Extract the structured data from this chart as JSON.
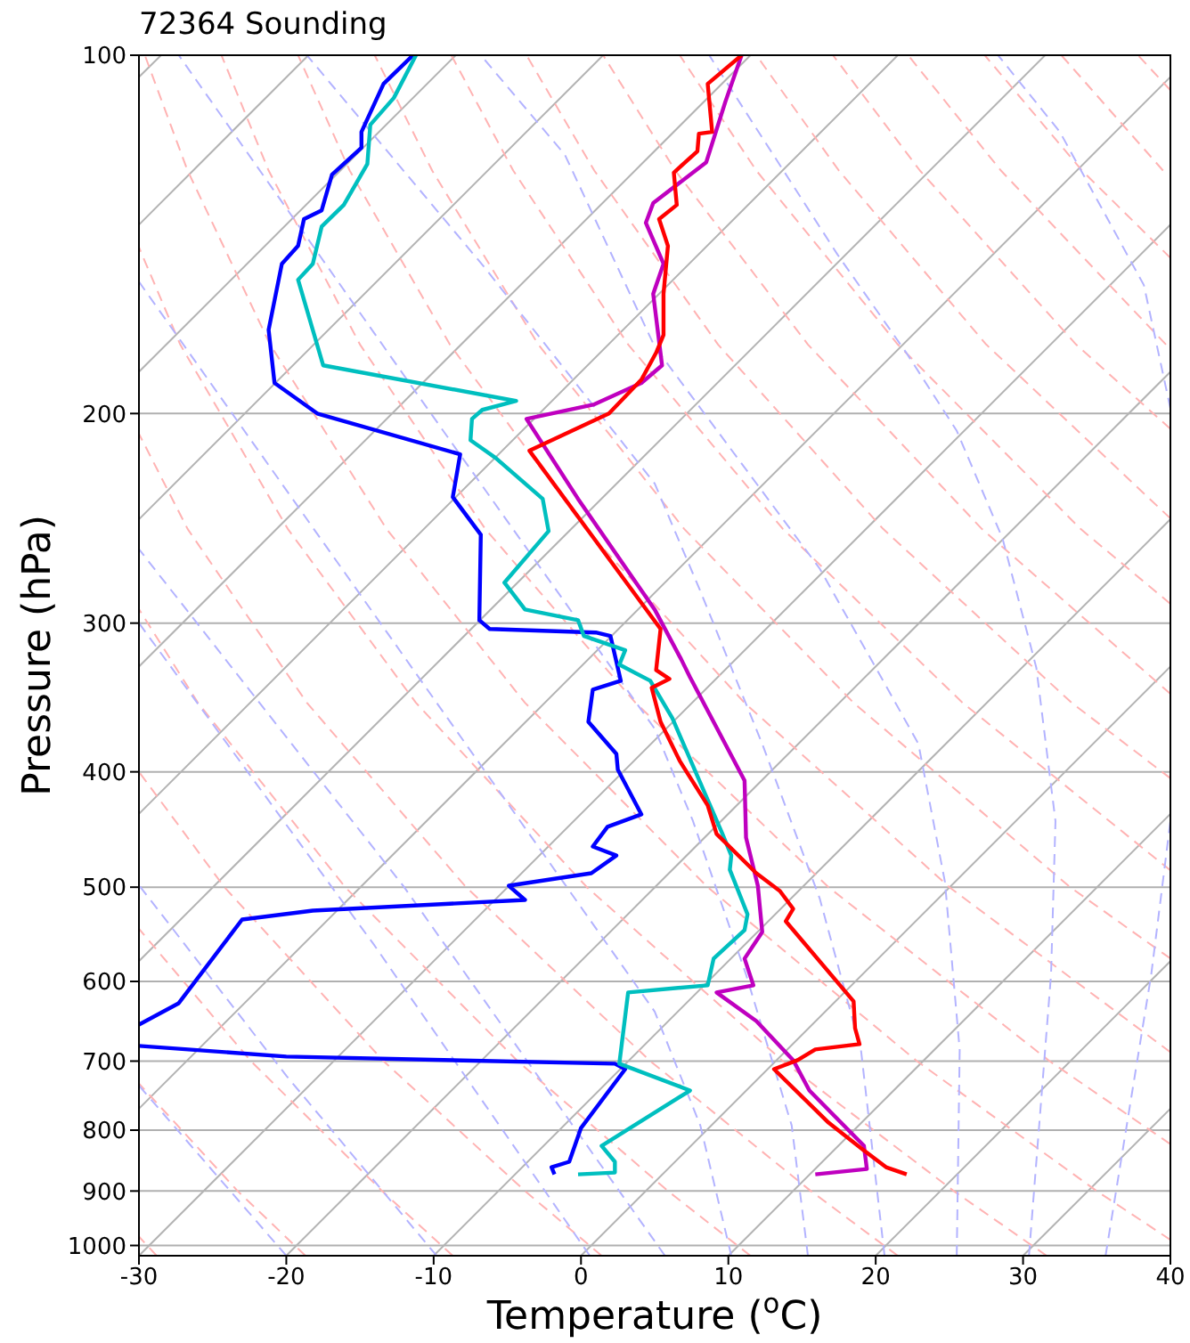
{
  "chart_data": {
    "type": "line",
    "title": "72364 Sounding",
    "xlabel": "Temperature ($^{o}$C)",
    "ylabel": "Pressure (hPa)",
    "log": "y",
    "grid": "y",
    "xlim": [
      -30,
      40
    ],
    "xticks": [
      -30,
      -20,
      -10,
      0,
      10,
      20,
      30,
      40
    ],
    "ylim": [
      1020,
      100
    ],
    "yticks": [
      100,
      200,
      300,
      400,
      500,
      600,
      700,
      800,
      900,
      1000
    ],
    "series": [
      {
        "color": "#b3b3b3",
        "line_style": "solid",
        "x": [
          -30,
          -28.5
        ],
        "values": [
          104.3,
          100
        ]
      },
      {
        "color": "#b3b3b3",
        "line_style": "solid",
        "x": [
          -30,
          -18.5
        ],
        "values": [
          138.8,
          100
        ]
      },
      {
        "color": "#b3b3b3",
        "line_style": "solid",
        "x": [
          -30,
          -8.5
        ],
        "values": [
          184.5,
          100
        ]
      },
      {
        "color": "#b3b3b3",
        "line_style": "solid",
        "x": [
          -30,
          1.5
        ],
        "values": [
          245.4,
          100
        ]
      },
      {
        "color": "#b3b3b3",
        "line_style": "solid",
        "x": [
          -30,
          11.5
        ],
        "values": [
          326.3,
          100
        ]
      },
      {
        "color": "#b3b3b3",
        "line_style": "solid",
        "x": [
          -30,
          21.5
        ],
        "values": [
          433.9,
          100
        ]
      },
      {
        "color": "#b3b3b3",
        "line_style": "solid",
        "x": [
          -30,
          31.5
        ],
        "values": [
          576.9,
          100
        ]
      },
      {
        "color": "#b3b3b3",
        "line_style": "solid",
        "x": [
          -30,
          40
        ],
        "values": [
          767.5,
          104.3
        ]
      },
      {
        "color": "#b3b3b3",
        "line_style": "solid",
        "x": [
          -30,
          40
        ],
        "values": [
          1020,
          138.8
        ]
      },
      {
        "color": "#b3b3b3",
        "line_style": "solid",
        "x": [
          -20,
          40
        ],
        "values": [
          1020,
          184.5
        ]
      },
      {
        "color": "#b3b3b3",
        "line_style": "solid",
        "x": [
          -10,
          40
        ],
        "values": [
          1020,
          245.4
        ]
      },
      {
        "color": "#b3b3b3",
        "line_style": "solid",
        "x": [
          0,
          40
        ],
        "values": [
          1020,
          326.3
        ]
      },
      {
        "color": "#b3b3b3",
        "line_style": "solid",
        "x": [
          10,
          40
        ],
        "values": [
          1020,
          433.9
        ]
      },
      {
        "color": "#b3b3b3",
        "line_style": "solid",
        "x": [
          20,
          40
        ],
        "values": [
          1020,
          576.9
        ]
      },
      {
        "color": "#b3b3b3",
        "line_style": "solid",
        "x": [
          30,
          40
        ],
        "values": [
          1020,
          767.5
        ]
      },
      {
        "color": "#ffb3b3",
        "line_style": "dashed",
        "x": [
          -28.8,
          -30
        ],
        "values": [
          1020,
          983
        ]
      },
      {
        "color": "#ffb3b3",
        "line_style": "dashed",
        "x": [
          -18.7,
          -23.3,
          -30
        ],
        "values": [
          1020,
          900,
          731
        ]
      },
      {
        "color": "#ffb3b3",
        "line_style": "dashed",
        "x": [
          -8.7,
          -13.5,
          -22.4,
          -30
        ],
        "values": [
          1020,
          900,
          700,
          542
        ]
      },
      {
        "color": "#ffb3b3",
        "line_style": "dashed",
        "x": [
          1.4,
          -3.8,
          -13.4,
          -24.2,
          -30
        ],
        "values": [
          1020,
          900,
          700,
          500,
          400
        ]
      },
      {
        "color": "#ffb3b3",
        "line_style": "dashed",
        "x": [
          11.5,
          5.9,
          -4.3,
          -16.0,
          -26.0,
          -30
        ],
        "values": [
          1020,
          900,
          700,
          500,
          350,
          292
        ]
      },
      {
        "color": "#ffb3b3",
        "line_style": "dashed",
        "x": [
          21.5,
          15.6,
          4.7,
          -7.8,
          -18.6,
          -26.7,
          -30
        ],
        "values": [
          1020,
          900,
          700,
          500,
          350,
          250,
          208
        ]
      },
      {
        "color": "#ffb3b3",
        "line_style": "dashed",
        "x": [
          31.6,
          25.3,
          13.7,
          0.4,
          -11.2,
          -19.9,
          -27.2,
          -30
        ],
        "values": [
          1020,
          900,
          700,
          500,
          350,
          250,
          175,
          145
        ]
      },
      {
        "color": "#ffb3b3",
        "line_style": "dashed",
        "x": [
          40,
          35.0,
          22.8,
          8.6,
          -3.8,
          -13.2,
          -21.1,
          -26.7,
          -29.6
        ],
        "values": [
          989,
          900,
          700,
          500,
          350,
          250,
          175,
          125,
          100
        ]
      },
      {
        "color": "#ffb3b3",
        "line_style": "dashed",
        "x": [
          40,
          31.8,
          16.8,
          3.7,
          -6.5,
          -15.0,
          -21.2,
          -24.4
        ],
        "values": [
          822,
          700,
          500,
          350,
          250,
          175,
          125,
          100
        ]
      },
      {
        "color": "#ffb3b3",
        "line_style": "dashed",
        "x": [
          40,
          25.0,
          11.1,
          0.3,
          -8.9,
          -15.7,
          -19.2
        ],
        "values": [
          688,
          500,
          350,
          250,
          175,
          125,
          100
        ]
      },
      {
        "color": "#ffb3b3",
        "line_style": "dashed",
        "x": [
          40,
          33.2,
          18.5,
          7.0,
          -2.9,
          -10.1,
          -14.0
        ],
        "values": [
          574,
          500,
          350,
          250,
          175,
          125,
          100
        ]
      },
      {
        "color": "#ffb3b3",
        "line_style": "dashed",
        "x": [
          40,
          25.9,
          13.7,
          3.2,
          -4.6,
          -8.8
        ],
        "values": [
          484,
          350,
          250,
          175,
          125,
          100
        ]
      },
      {
        "color": "#ffb3b3",
        "line_style": "dashed",
        "x": [
          40,
          33.3,
          20.5,
          9.3,
          0.9,
          -3.7
        ],
        "values": [
          405,
          350,
          250,
          175,
          125,
          100
        ]
      },
      {
        "color": "#ffb3b3",
        "line_style": "dashed",
        "x": [
          40,
          27.2,
          15.4,
          6.4,
          1.5
        ],
        "values": [
          344,
          250,
          175,
          125,
          100
        ]
      },
      {
        "color": "#ffb3b3",
        "line_style": "dashed",
        "x": [
          40,
          33.9,
          21.5,
          11.9,
          6.7
        ],
        "values": [
          289,
          250,
          175,
          125,
          100
        ]
      },
      {
        "color": "#ffb3b3",
        "line_style": "dashed",
        "x": [
          40,
          27.5,
          17.5,
          11.9
        ],
        "values": [
          245,
          175,
          125,
          100
        ]
      },
      {
        "color": "#ffb3b3",
        "line_style": "dashed",
        "x": [
          40,
          33.6,
          23.0,
          17.1
        ],
        "values": [
          206,
          175,
          125,
          100
        ]
      },
      {
        "color": "#ffb3b3",
        "line_style": "dashed",
        "x": [
          39.7,
          28.5,
          22.2
        ],
        "values": [
          175,
          125,
          100
        ]
      },
      {
        "color": "#ffb3b3",
        "line_style": "dashed",
        "x": [
          40,
          34.0,
          27.4
        ],
        "values": [
          148,
          125,
          100
        ]
      },
      {
        "color": "#ffb3b3",
        "line_style": "dashed",
        "x": [
          39.5,
          32.6
        ],
        "values": [
          125,
          100
        ]
      },
      {
        "color": "#ffb3b3",
        "line_style": "dashed",
        "x": [
          40,
          37.8
        ],
        "values": [
          107,
          100
        ]
      },
      {
        "color": "#b3b3ff",
        "line_style": "dashed",
        "x": [
          35.6,
          38.7,
          40
        ],
        "values": [
          1020,
          592,
          440
        ]
      },
      {
        "color": "#b3b3ff",
        "line_style": "dashed",
        "x": [
          40,
          38.2,
          32.5,
          28.3
        ],
        "values": [
          198,
          156,
          116,
          100
        ]
      },
      {
        "color": "#b3b3ff",
        "line_style": "dashed",
        "x": [
          30.4,
          31.9,
          32.2,
          30.9,
          28.6,
          25.5,
          22.1,
          17.4,
          8.7
        ],
        "values": [
          1020,
          592,
          440,
          327,
          254.5,
          206.8,
          178,
          147,
          100
        ]
      },
      {
        "color": "#b3b3ff",
        "line_style": "dashed",
        "x": [
          25.5,
          25.7,
          24.7,
          22.9,
          20.6,
          16.2,
          5.0,
          -1.1,
          -6.8
        ],
        "values": [
          1020,
          685,
          495,
          379,
          337,
          270,
          175.7,
          121.2,
          100
        ]
      },
      {
        "color": "#b3b3ff",
        "line_style": "dashed",
        "x": [
          20.6,
          19.0,
          16.2,
          12.3,
          8.1,
          5.0,
          -6.5,
          -18.6
        ],
        "values": [
          1020,
          685,
          511,
          379,
          282,
          229,
          151,
          100
        ]
      },
      {
        "color": "#b3b3ff",
        "line_style": "dashed",
        "x": [
          15.4,
          14.3,
          11.2,
          7.6,
          5.0,
          -11.2,
          -27.3
        ],
        "values": [
          1020,
          793,
          592,
          440,
          368,
          192,
          100
        ]
      },
      {
        "color": "#b3b3ff",
        "line_style": "dashed",
        "x": [
          10.2,
          8.1,
          5.0,
          -12.8,
          -30
        ],
        "values": [
          1020,
          793,
          636,
          310,
          155
        ]
      },
      {
        "color": "#b3b3ff",
        "line_style": "dashed",
        "x": [
          5.7,
          -12,
          -30
        ],
        "values": [
          1020,
          500,
          260
        ]
      },
      {
        "color": "#b3b3ff",
        "line_style": "dashed",
        "x": [
          0.6,
          -14,
          -30
        ],
        "values": [
          1020,
          560,
          300
        ]
      },
      {
        "color": "#b3b3ff",
        "line_style": "dashed",
        "x": [
          -9.8,
          -20,
          -30
        ],
        "values": [
          1020,
          720,
          498
        ]
      },
      {
        "color": "#b3b3ff",
        "line_style": "dashed",
        "x": [
          -20,
          -30
        ],
        "values": [
          1020,
          734
        ]
      },
      {
        "color": "#0000ff",
        "x": [
          -11.4,
          -13.4,
          -14.9,
          -14.9,
          -16.9,
          -17.6,
          -18.8,
          -19.2,
          -20.3,
          -21.2,
          -20.8,
          -17.9,
          -8.2,
          -8.7,
          -6.8,
          -6.9,
          -6.2,
          1.0,
          2.0,
          2.7,
          0.8,
          0.5,
          2.4,
          2.5,
          4.1,
          1.8,
          0.8,
          2.4,
          0.7,
          -4.9,
          -3.8,
          -18.2,
          -23.0,
          -27.3,
          -30,
          null,
          -30,
          -20.0,
          2.3,
          3.0,
          0.0,
          -0.8,
          -2.0,
          -1.8
        ],
        "values": [
          100,
          105.7,
          116,
          119.6,
          126,
          135,
          137.3,
          144.6,
          149.7,
          170.1,
          188.5,
          200,
          216.4,
          235.1,
          252.8,
          298.3,
          303.4,
          305.5,
          307.6,
          335.4,
          341.2,
          363.1,
          386.3,
          398.4,
          434.3,
          444.9,
          462.2,
          470.3,
          486.7,
          498.6,
          512.5,
          523.2,
          532.3,
          625.8,
          652.3,
          null,
          679.7,
          693.9,
          703.5,
          710.9,
          796.7,
          850.5,
          859.4,
          871.4
        ]
      },
      {
        "color": "#00bfbf",
        "x": [
          -11.2,
          -12.7,
          -14.3,
          -14.5,
          -16.1,
          -17.6,
          -18.2,
          -19.2,
          -17.5,
          -4.4,
          -6.7,
          -7.4,
          -7.5,
          -5.8,
          -2.6,
          -2.2,
          -5.2,
          -3.8,
          -0.2,
          0.2,
          3.0,
          2.6,
          4.7,
          6.2,
          9.6,
          10.2,
          10.1,
          11.3,
          11.1,
          9.0,
          8.6,
          3.2,
          2.6,
          7.4,
          1.4,
          2.3,
          2.3,
          -0.2
        ],
        "values": [
          100,
          108.6,
          114.4,
          123.4,
          133.6,
          139.3,
          149.7,
          154.4,
          182.2,
          195.2,
          198.6,
          202.1,
          210.6,
          217.9,
          235.9,
          251.1,
          277.4,
          292.2,
          298.3,
          307.6,
          316.2,
          325.1,
          335.4,
          360.6,
          451.1,
          470.3,
          483.4,
          526.9,
          543.3,
          574.1,
          604.5,
          612.9,
          703.5,
          741,
          824.6,
          850.5,
          868.4,
          871.4
        ]
      },
      {
        "color": "#bf00bf",
        "x": [
          10.9,
          9.8,
          8.5,
          4.9,
          4.4,
          5.6,
          4.9,
          5.5,
          4.1,
          0.9,
          -3.7,
          -0.2,
          5.0,
          6.8,
          7.4,
          11.1,
          11.2,
          12.0,
          12.3,
          11.1,
          11.7,
          9.2,
          11.9,
          14.4,
          15.5,
          19.2,
          19.4,
          15.9
        ],
        "values": [
          100,
          109.4,
          123,
          133.1,
          138.3,
          149.7,
          158.7,
          182.2,
          188.5,
          196.5,
          202.1,
          235.9,
          292.2,
          321.8,
          333.1,
          406.8,
          454.3,
          498.6,
          545.2,
          574.1,
          604.5,
          612.9,
          647.8,
          698.7,
          741,
          824.6,
          862.4,
          871.4
        ]
      },
      {
        "color": "#ff0000",
        "x": [
          10.9,
          8.6,
          8.9,
          8.0,
          7.9,
          6.3,
          6.5,
          5.3,
          5.9,
          5.6,
          5.6,
          5.1,
          4.1,
          1.9,
          -3.5,
          5.4,
          5.1,
          6.0,
          4.8,
          5.4,
          6.7,
          8.6,
          9.2,
          11.9,
          13.5,
          14.4,
          13.9,
          18.5,
          18.6,
          18.9,
          15.9,
          14.7,
          13.1,
          16.8,
          19.1,
          20.7,
          22.1
        ],
        "values": [
          100,
          105.7,
          116,
          116.4,
          120.4,
          125.5,
          133.6,
          137.3,
          144.6,
          158.7,
          171.8,
          177.8,
          187.3,
          200,
          214.9,
          303.4,
          328.5,
          334.2,
          340,
          363.1,
          391.6,
          426.8,
          451.1,
          486.7,
          503.7,
          521.4,
          534.1,
          623.6,
          656.8,
          677.4,
          684.4,
          698.7,
          710.9,
          788.5,
          830.3,
          859.4,
          871.4
        ]
      }
    ]
  }
}
